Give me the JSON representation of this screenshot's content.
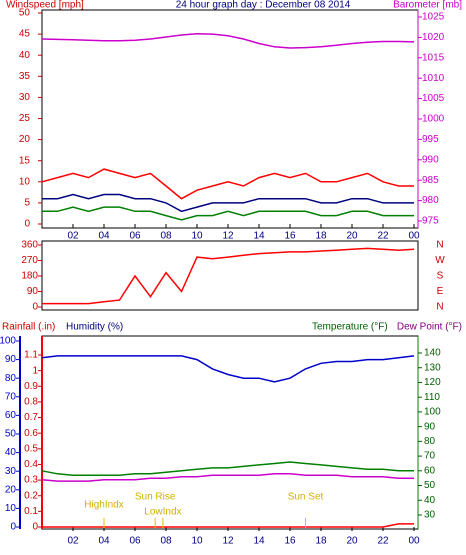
{
  "chart_data": [
    {
      "type": "line",
      "y_label": "Windspeed [mph]",
      "title": "24 hour graph day : December 08 2014",
      "y2_label": "Barometer [mb]",
      "x": [
        0,
        1,
        2,
        3,
        4,
        5,
        6,
        7,
        8,
        9,
        10,
        11,
        12,
        13,
        14,
        15,
        16,
        17,
        18,
        19,
        20,
        21,
        22,
        23,
        24
      ],
      "xlim": [
        0,
        24
      ],
      "xticks": [
        {
          "value": 2,
          "label": "02"
        },
        {
          "value": 4,
          "label": "04"
        },
        {
          "value": 6,
          "label": "06"
        },
        {
          "value": 8,
          "label": "08"
        },
        10,
        12,
        14,
        16,
        18,
        20,
        22,
        {
          "value": 24,
          "label": "00"
        }
      ],
      "ylim": [
        0,
        50
      ],
      "yticks": [
        0,
        5,
        10,
        15,
        20,
        25,
        30,
        35,
        40,
        45,
        50
      ],
      "y2lim": [
        975,
        1025
      ],
      "y2ticks": [
        975,
        980,
        985,
        990,
        995,
        1000,
        1005,
        1010,
        1015,
        1020,
        1025
      ],
      "series": [
        {
          "color": "#ff0000",
          "values": [
            10,
            11,
            12,
            11,
            13,
            12,
            11,
            12,
            9,
            6,
            8,
            9,
            10,
            9,
            11,
            12,
            11,
            12,
            10,
            10,
            11,
            12,
            10,
            9,
            9
          ]
        },
        {
          "color": "#000080",
          "values": [
            6,
            6,
            7,
            6,
            7,
            7,
            6,
            6,
            5,
            3,
            4,
            5,
            5,
            5,
            6,
            6,
            6,
            6,
            5,
            5,
            6,
            6,
            5,
            5,
            5
          ]
        },
        {
          "color": "#008000",
          "values": [
            3,
            3,
            4,
            3,
            4,
            4,
            3,
            3,
            2,
            1,
            2,
            2,
            3,
            2,
            3,
            3,
            3,
            3,
            2,
            2,
            3,
            3,
            2,
            2,
            2
          ]
        },
        {
          "color": "#cc00cc",
          "axis": "y2",
          "values": [
            1019.6,
            1019.5,
            1019.4,
            1019.3,
            1019.2,
            1019.2,
            1019.3,
            1019.6,
            1020.1,
            1020.6,
            1020.9,
            1020.8,
            1020.4,
            1019.6,
            1018.5,
            1017.7,
            1017.4,
            1017.5,
            1017.7,
            1018.1,
            1018.5,
            1018.8,
            1019.0,
            1019.0,
            1018.9
          ]
        }
      ]
    },
    {
      "type": "line",
      "x": [
        0,
        1,
        2,
        3,
        4,
        5,
        6,
        7,
        8,
        9,
        10,
        11,
        12,
        13,
        14,
        15,
        16,
        17,
        18,
        19,
        20,
        21,
        22,
        23,
        24
      ],
      "xlim": [
        0,
        24
      ],
      "ylim": [
        0,
        360
      ],
      "yticks": [
        0,
        90,
        180,
        270,
        360
      ],
      "direction_labels": [
        "N",
        "W",
        "S",
        "E",
        "N"
      ],
      "series": [
        {
          "color": "#ff0000",
          "values": [
            20,
            20,
            20,
            20,
            30,
            40,
            180,
            60,
            200,
            90,
            290,
            280,
            290,
            300,
            310,
            315,
            320,
            320,
            325,
            330,
            335,
            340,
            335,
            330,
            335
          ]
        }
      ]
    },
    {
      "type": "line",
      "y3_label": "Rainfall (.in)",
      "y_label": "Humidity (%)",
      "y2_label": "Temperature (°F)",
      "y2b_label": "Dew Point (°F)",
      "x": [
        0,
        1,
        2,
        3,
        4,
        5,
        6,
        7,
        8,
        9,
        10,
        11,
        12,
        13,
        14,
        15,
        16,
        17,
        18,
        19,
        20,
        21,
        22,
        23,
        24
      ],
      "xlim": [
        0,
        24
      ],
      "xticks": [
        {
          "value": 2,
          "label": "02"
        },
        {
          "value": 4,
          "label": "04"
        },
        {
          "value": 6,
          "label": "06"
        },
        {
          "value": 8,
          "label": "08"
        },
        10,
        12,
        14,
        16,
        18,
        20,
        22,
        {
          "value": 24,
          "label": "00"
        }
      ],
      "ylim": [
        0,
        100
      ],
      "yticks": [
        0,
        10,
        20,
        30,
        40,
        50,
        60,
        70,
        80,
        90,
        100
      ],
      "y3lim": [
        0,
        1.1
      ],
      "y3ticks": [
        0,
        0.1,
        0.2,
        0.3,
        0.4,
        0.5,
        0.6,
        0.7,
        0.8,
        0.9,
        1,
        1.1
      ],
      "y2lim": [
        30,
        140
      ],
      "y2ticks": [
        30,
        40,
        50,
        60,
        70,
        80,
        90,
        100,
        110,
        120,
        130,
        140
      ],
      "series": [
        {
          "color": "#0000cc",
          "values": [
            91,
            92,
            92,
            92,
            92,
            92,
            92,
            92,
            92,
            92,
            90,
            85,
            82,
            80,
            80,
            78,
            80,
            85,
            88,
            89,
            89,
            90,
            90,
            91,
            92
          ]
        },
        {
          "color": "#008000",
          "axis": "y2",
          "values": [
            60,
            58,
            57,
            57,
            57,
            57,
            58,
            58,
            59,
            60,
            61,
            62,
            62,
            63,
            64,
            65,
            66,
            65,
            64,
            63,
            62,
            61,
            61,
            60,
            60
          ]
        },
        {
          "color": "#cc00cc",
          "axis": "y2",
          "values": [
            54,
            53,
            53,
            53,
            54,
            54,
            54,
            55,
            55,
            56,
            56,
            57,
            57,
            57,
            57,
            58,
            58,
            57,
            57,
            57,
            56,
            56,
            56,
            55,
            55
          ]
        },
        {
          "color": "#ff0000",
          "axis": "y3",
          "values": [
            0,
            0,
            0,
            0,
            0,
            0,
            0,
            0,
            0,
            0,
            0,
            0,
            0,
            0,
            0,
            0,
            0,
            0,
            0,
            0,
            0,
            0,
            0,
            0.02,
            0.02
          ]
        }
      ],
      "annotations": [
        {
          "text": "HighIndx",
          "x": 4
        },
        {
          "text": "Sun Rise",
          "x": 7.3
        },
        {
          "text": "LowIndx",
          "x": 7.8
        },
        {
          "text": "Sun Set",
          "x": 17
        }
      ]
    }
  ]
}
